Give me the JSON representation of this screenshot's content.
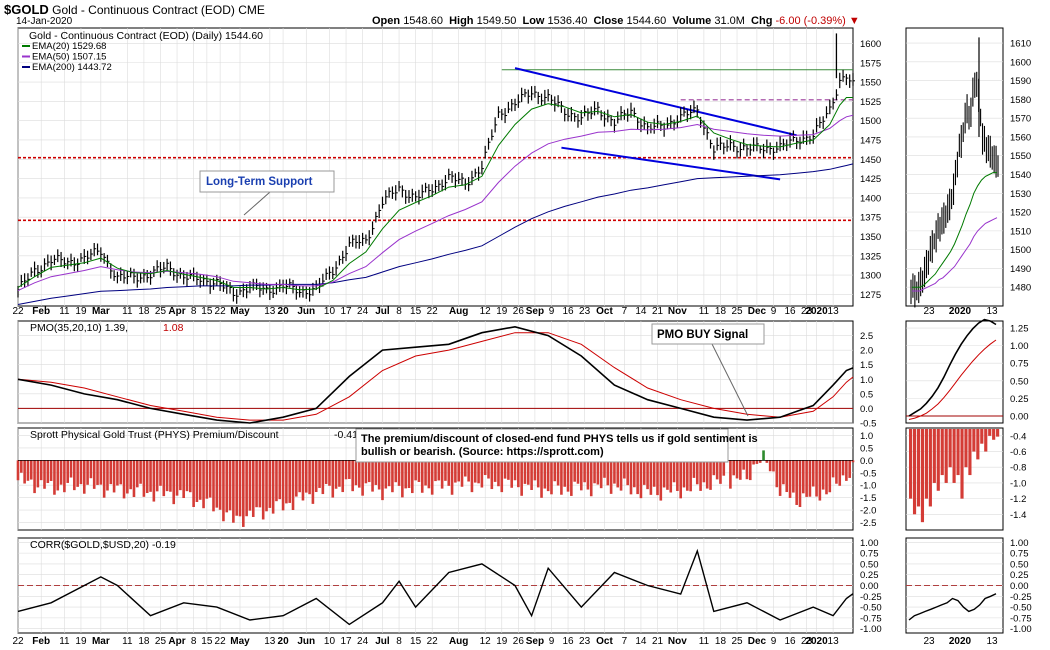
{
  "header": {
    "symbol": "$GOLD",
    "name": "Gold - Continuous Contract (EOD)",
    "exchange": "CME",
    "date": "14-Jan-2020",
    "open_label": "Open",
    "open": "1548.60",
    "high_label": "High",
    "high": "1549.50",
    "low_label": "Low",
    "low": "1536.40",
    "close_label": "Close",
    "close": "1544.60",
    "volume_label": "Volume",
    "volume": "31.0M",
    "chg_label": "Chg",
    "chg": "-6.00 (-0.39%)",
    "down_arrow": "▼"
  },
  "colors": {
    "ema20": "#007a00",
    "ema50": "#9933cc",
    "ema200": "#000080",
    "price": "#000000",
    "support": "#cc0000",
    "resistance": "#9b3b9b",
    "trendline": "#0000dd",
    "flat": "#3a8a3a",
    "pmo": "#000000",
    "pmo_signal": "#cc0000",
    "bar_neg": "#d43c36",
    "bar_pos": "#2e8b2e",
    "corr": "#000000",
    "grid": "#dcdcdc"
  },
  "chart_data": [
    {
      "id": "price",
      "type": "line",
      "title": "Gold - Continuous Contract (EOD) (Daily) 1544.60",
      "legend": [
        "EMA(20) 1529.68",
        "EMA(50) 1507.15",
        "EMA(200) 1443.72"
      ],
      "legend_placement": "top-left",
      "ylim": [
        1260,
        1620
      ],
      "yticks": [
        1275,
        1300,
        1325,
        1350,
        1375,
        1400,
        1425,
        1450,
        1475,
        1500,
        1525,
        1550,
        1575,
        1600
      ],
      "x_labels": [
        "22",
        "Feb",
        "11",
        "19",
        "Mar",
        "11",
        "18",
        "25",
        "Apr",
        "8",
        "15",
        "22",
        "May",
        "13",
        "20",
        "Jun",
        "10",
        "17",
        "24",
        "Jul",
        "8",
        "15",
        "22",
        "Aug",
        "12",
        "19",
        "26",
        "Sep",
        "9",
        "16",
        "23",
        "Oct",
        "7",
        "14",
        "21",
        "Nov",
        "11",
        "18",
        "25",
        "Dec",
        "9",
        "16",
        "23",
        "2020",
        "13"
      ],
      "x_label_days": [
        0,
        7,
        14,
        19,
        25,
        33,
        38,
        43,
        48,
        53,
        57,
        61,
        67,
        76,
        80,
        87,
        94,
        99,
        104,
        110,
        115,
        120,
        125,
        133,
        141,
        146,
        151,
        156,
        161,
        166,
        171,
        177,
        183,
        188,
        193,
        199,
        207,
        212,
        217,
        223,
        228,
        233,
        238,
        241,
        246
      ],
      "dates": [
        "2019-01-18",
        "2019-01-25",
        "2019-02-01",
        "2019-02-08",
        "2019-02-15",
        "2019-02-22",
        "2019-03-01",
        "2019-03-08",
        "2019-03-15",
        "2019-03-22",
        "2019-03-29",
        "2019-04-05",
        "2019-04-12",
        "2019-04-19",
        "2019-04-26",
        "2019-05-03",
        "2019-05-10",
        "2019-05-17",
        "2019-05-24",
        "2019-05-31",
        "2019-06-07",
        "2019-06-14",
        "2019-06-21",
        "2019-06-28",
        "2019-07-05",
        "2019-07-12",
        "2019-07-19",
        "2019-07-26",
        "2019-08-02",
        "2019-08-09",
        "2019-08-16",
        "2019-08-23",
        "2019-08-30",
        "2019-09-06",
        "2019-09-13",
        "2019-09-20",
        "2019-09-27",
        "2019-10-04",
        "2019-10-11",
        "2019-10-18",
        "2019-10-25",
        "2019-11-01",
        "2019-11-08",
        "2019-11-15",
        "2019-11-22",
        "2019-11-29",
        "2019-12-06",
        "2019-12-13",
        "2019-12-20",
        "2019-12-27",
        "2020-01-03",
        "2020-01-10",
        "2020-01-14"
      ],
      "day_index": [
        0,
        5,
        10,
        15,
        20,
        25,
        30,
        35,
        40,
        45,
        50,
        55,
        60,
        65,
        70,
        75,
        80,
        85,
        90,
        95,
        100,
        105,
        110,
        115,
        120,
        125,
        130,
        135,
        140,
        145,
        150,
        155,
        160,
        165,
        170,
        175,
        180,
        185,
        190,
        195,
        200,
        205,
        210,
        215,
        220,
        225,
        230,
        235,
        240,
        245,
        248,
        250,
        252
      ],
      "close": [
        1281,
        1305,
        1320,
        1316,
        1322,
        1331,
        1296,
        1298,
        1300,
        1312,
        1297,
        1295,
        1290,
        1276,
        1285,
        1280,
        1287,
        1278,
        1283,
        1305,
        1340,
        1344,
        1395,
        1412,
        1400,
        1412,
        1426,
        1419,
        1440,
        1508,
        1522,
        1537,
        1529,
        1512,
        1503,
        1515,
        1497,
        1513,
        1489,
        1494,
        1504,
        1514,
        1462,
        1469,
        1463,
        1465,
        1465,
        1476,
        1480,
        1515,
        1552,
        1557,
        1545
      ],
      "ema20": [
        1284,
        1298,
        1310,
        1313,
        1316,
        1322,
        1309,
        1303,
        1302,
        1306,
        1301,
        1297,
        1293,
        1284,
        1284,
        1282,
        1284,
        1281,
        1282,
        1293,
        1315,
        1330,
        1360,
        1384,
        1394,
        1403,
        1414,
        1417,
        1428,
        1468,
        1495,
        1515,
        1522,
        1518,
        1510,
        1512,
        1505,
        1508,
        1498,
        1495,
        1499,
        1506,
        1484,
        1476,
        1469,
        1467,
        1466,
        1471,
        1475,
        1495,
        1520,
        1530,
        1530
      ],
      "ema50": [
        1280,
        1290,
        1298,
        1302,
        1306,
        1311,
        1307,
        1304,
        1303,
        1305,
        1303,
        1301,
        1298,
        1292,
        1290,
        1288,
        1288,
        1286,
        1286,
        1291,
        1302,
        1311,
        1329,
        1346,
        1357,
        1367,
        1377,
        1385,
        1395,
        1420,
        1441,
        1458,
        1470,
        1476,
        1480,
        1485,
        1486,
        1489,
        1488,
        1489,
        1491,
        1495,
        1489,
        1486,
        1483,
        1481,
        1480,
        1481,
        1482,
        1490,
        1500,
        1505,
        1507
      ],
      "ema200": [
        1262,
        1266,
        1270,
        1273,
        1276,
        1279,
        1280,
        1281,
        1282,
        1284,
        1285,
        1286,
        1286,
        1286,
        1287,
        1287,
        1288,
        1288,
        1288,
        1290,
        1294,
        1297,
        1304,
        1311,
        1316,
        1321,
        1327,
        1332,
        1338,
        1350,
        1362,
        1373,
        1382,
        1389,
        1395,
        1401,
        1405,
        1410,
        1413,
        1417,
        1421,
        1425,
        1426,
        1427,
        1428,
        1429,
        1430,
        1432,
        1434,
        1437,
        1440,
        1442,
        1444
      ],
      "annotations": {
        "support_lines": [
          1452,
          1371
        ],
        "resistance_line": 1527,
        "flat_line": 1566,
        "upper_trendline": {
          "from": [
            150,
            1568
          ],
          "to": [
            235,
            1481
          ]
        },
        "lower_trendline": {
          "from": [
            164,
            1465
          ],
          "to": [
            230,
            1424
          ]
        },
        "label": "Long-Term Support"
      }
    },
    {
      "id": "pmo",
      "type": "line",
      "title": "PMO(35,20,10) 1.39,",
      "title_value": "1.08",
      "ylim": [
        -0.5,
        3.0
      ],
      "yticks": [
        -0.5,
        0,
        0.5,
        1.0,
        1.5,
        2.0,
        2.5
      ],
      "ytick_labels": [
        "-0.5",
        "0.0",
        "0.5",
        "1.0",
        "1.5",
        "2.0",
        "2.5"
      ],
      "label": "PMO BUY Signal",
      "day_index": [
        0,
        10,
        20,
        30,
        40,
        50,
        60,
        70,
        80,
        90,
        100,
        110,
        120,
        130,
        140,
        150,
        160,
        170,
        180,
        190,
        200,
        210,
        220,
        230,
        240,
        246,
        250,
        252
      ],
      "pmo": [
        1.0,
        0.8,
        0.5,
        0.3,
        0.0,
        -0.2,
        -0.4,
        -0.5,
        -0.3,
        0.0,
        1.1,
        2.0,
        2.1,
        2.2,
        2.6,
        2.8,
        2.5,
        1.8,
        0.8,
        0.3,
        0.0,
        -0.3,
        -0.4,
        -0.3,
        0.1,
        0.8,
        1.3,
        1.39
      ],
      "signal": [
        1.0,
        0.9,
        0.7,
        0.4,
        0.1,
        -0.1,
        -0.3,
        -0.4,
        -0.4,
        -0.2,
        0.4,
        1.3,
        1.8,
        2.0,
        2.3,
        2.6,
        2.6,
        2.2,
        1.4,
        0.7,
        0.3,
        0.0,
        -0.2,
        -0.3,
        -0.1,
        0.4,
        0.9,
        1.08
      ]
    },
    {
      "id": "phys",
      "type": "bar",
      "title": "Sprott Physical Gold Trust (PHYS) Premium/Discount",
      "title_value": "-0.41",
      "note": "The premium/discount of closed-end fund PHYS tells us if gold sentiment is bullish or bearish. (Source: https://sprott.com)",
      "ylim": [
        -2.8,
        1.3
      ],
      "yticks": [
        -2.5,
        -2.0,
        -1.5,
        -1.0,
        -0.5,
        0,
        0.5,
        1.0
      ],
      "ytick_labels": [
        "-2.5",
        "-2.0",
        "-1.5",
        "-1.0",
        "-0.5",
        "0.0",
        "0.5",
        "1.0"
      ],
      "day_index": [
        0,
        10,
        20,
        30,
        40,
        50,
        60,
        65,
        70,
        75,
        80,
        90,
        100,
        110,
        120,
        130,
        140,
        150,
        160,
        170,
        180,
        190,
        200,
        210,
        220,
        225,
        230,
        235,
        240,
        245,
        250,
        252
      ],
      "values": [
        -0.8,
        -1.1,
        -1.0,
        -1.2,
        -1.3,
        -1.4,
        -1.9,
        -2.4,
        -2.2,
        -2.0,
        -1.8,
        -1.3,
        -1.0,
        -1.2,
        -1.1,
        -1.0,
        -0.9,
        -1.0,
        -1.2,
        -1.1,
        -1.0,
        -1.3,
        -1.2,
        -0.9,
        -0.7,
        0.4,
        -1.2,
        -1.6,
        -1.4,
        -1.2,
        -0.6,
        -0.41
      ]
    },
    {
      "id": "corr",
      "type": "line",
      "title": "CORR($GOLD,$USD,20) -0.19",
      "ylim": [
        -1.1,
        1.1
      ],
      "yticks": [
        -1.0,
        -0.75,
        -0.5,
        -0.25,
        0,
        0.25,
        0.5,
        0.75,
        1.0
      ],
      "ytick_labels": [
        "-1.00",
        "-0.75",
        "-0.50",
        "-0.25",
        "0.00",
        "0.25",
        "0.50",
        "0.75",
        "1.00"
      ],
      "day_index": [
        0,
        10,
        20,
        25,
        30,
        40,
        50,
        60,
        70,
        80,
        90,
        100,
        110,
        115,
        120,
        130,
        140,
        150,
        155,
        160,
        170,
        180,
        190,
        200,
        205,
        210,
        220,
        230,
        240,
        246,
        250,
        252
      ],
      "values": [
        -0.6,
        -0.4,
        0.0,
        0.2,
        0.0,
        -0.7,
        -0.4,
        -0.5,
        -0.8,
        -0.7,
        -0.3,
        -0.9,
        -0.4,
        0.1,
        -0.5,
        0.3,
        0.5,
        0.0,
        -0.7,
        0.4,
        -0.5,
        0.3,
        0.0,
        -0.2,
        0.8,
        -0.6,
        -0.4,
        -0.8,
        -0.5,
        -0.7,
        -0.3,
        -0.19
      ]
    },
    {
      "id": "inset_price",
      "type": "line",
      "ylim": [
        1470,
        1618
      ],
      "yticks": [
        1480,
        1490,
        1500,
        1510,
        1520,
        1530,
        1540,
        1550,
        1560,
        1570,
        1580,
        1590,
        1600,
        1610
      ],
      "x_labels": [
        "23",
        "2020",
        "13"
      ],
      "close": [
        1480,
        1478,
        1480,
        1485,
        1492,
        1500,
        1505,
        1512,
        1515,
        1520,
        1525,
        1535,
        1552,
        1560,
        1575,
        1570,
        1590,
        1585,
        1560,
        1555,
        1552,
        1548,
        1545
      ],
      "ema20": [
        1480,
        1480,
        1480,
        1481,
        1483,
        1485,
        1487,
        1490,
        1493,
        1496,
        1499,
        1503,
        1508,
        1513,
        1519,
        1524,
        1530,
        1534,
        1537,
        1539,
        1540,
        1541,
        1541
      ],
      "ema50": [
        1478,
        1478,
        1478,
        1479,
        1480,
        1481,
        1482,
        1484,
        1485,
        1487,
        1489,
        1491,
        1494,
        1497,
        1500,
        1503,
        1507,
        1510,
        1512,
        1514,
        1515,
        1516,
        1517
      ]
    },
    {
      "id": "inset_pmo",
      "type": "line",
      "ylim": [
        -0.1,
        1.35
      ],
      "yticks": [
        0,
        0.25,
        0.5,
        0.75,
        1.0,
        1.25
      ],
      "ytick_labels": [
        "0.00",
        "0.25",
        "0.50",
        "0.75",
        "1.00",
        "1.25"
      ],
      "pmo": [
        0.0,
        0.05,
        0.1,
        0.18,
        0.28,
        0.4,
        0.55,
        0.72,
        0.88,
        1.02,
        1.14,
        1.24,
        1.32,
        1.37,
        1.35,
        1.3
      ],
      "signal": [
        -0.05,
        -0.03,
        0.0,
        0.04,
        0.1,
        0.17,
        0.26,
        0.36,
        0.47,
        0.58,
        0.68,
        0.78,
        0.87,
        0.95,
        1.02,
        1.08
      ]
    },
    {
      "id": "inset_phys",
      "type": "bar",
      "ylim": [
        -1.6,
        -0.3
      ],
      "yticks": [
        -1.4,
        -1.2,
        -1.0,
        -0.8,
        -0.6,
        -0.4
      ],
      "ytick_labels": [
        "-1.4",
        "-1.2",
        "-1.0",
        "-0.8",
        "-0.6",
        "-0.4"
      ],
      "values": [
        -1.2,
        -1.4,
        -1.3,
        -1.5,
        -1.2,
        -1.3,
        -1.0,
        -1.1,
        -0.9,
        -1.0,
        -0.8,
        -1.0,
        -0.9,
        -1.2,
        -0.8,
        -0.9,
        -0.6,
        -0.7,
        -0.5,
        -0.6,
        -0.4,
        -0.45,
        -0.41
      ]
    },
    {
      "id": "inset_corr",
      "type": "line",
      "ylim": [
        -1.1,
        1.1
      ],
      "yticks": [
        -1.0,
        -0.75,
        -0.5,
        -0.25,
        0,
        0.25,
        0.5,
        0.75,
        1.0
      ],
      "ytick_labels": [
        "-1.00",
        "-0.75",
        "-0.50",
        "-0.25",
        "0.00",
        "0.25",
        "0.50",
        "0.75",
        "1.00"
      ],
      "values": [
        -0.8,
        -0.7,
        -0.65,
        -0.6,
        -0.55,
        -0.5,
        -0.45,
        -0.4,
        -0.3,
        -0.35,
        -0.5,
        -0.6,
        -0.55,
        -0.45,
        -0.3,
        -0.25,
        -0.19
      ]
    }
  ]
}
